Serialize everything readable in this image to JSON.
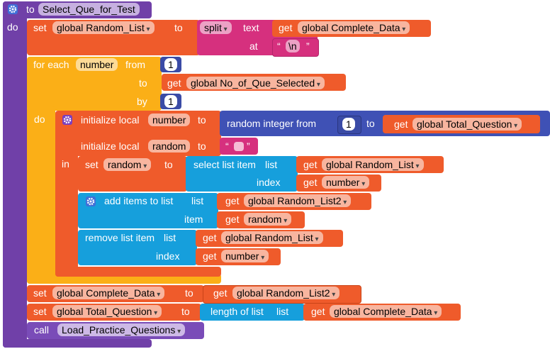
{
  "procedure": {
    "to": "to",
    "name": "Select_Que_for_Test",
    "do": "do"
  },
  "lines": [
    [
      "set",
      "global Random_List",
      "to",
      "split",
      "text",
      "get",
      "global Complete_Data"
    ],
    [
      "at",
      "“",
      "\\n",
      "”"
    ],
    [
      "for each",
      "number",
      "from",
      1
    ],
    [
      "to",
      "get",
      "global No_of_Que_Selected"
    ],
    [
      "by",
      1
    ],
    [
      "do",
      "initialize local",
      "number",
      "to",
      "random integer from",
      1,
      "to",
      "get",
      "global Total_Question"
    ],
    [
      "initialize local",
      "random",
      "to",
      "“",
      "”"
    ],
    [
      "in",
      "set",
      "random",
      "to",
      "select list item",
      "list",
      "get",
      "global Random_List"
    ],
    [
      "index",
      "get",
      "number"
    ],
    [
      "add items to list",
      "list",
      "get",
      "global Random_List2"
    ],
    [
      "item",
      "get",
      "random"
    ],
    [
      "remove list item",
      "list",
      "get",
      "global Random_List"
    ],
    [
      "index",
      "get",
      "number"
    ],
    [
      "set",
      "global Complete_Data",
      "to",
      "get",
      "global Random_List2"
    ],
    [
      "set",
      "global Total_Question",
      "to",
      "length of list",
      "list",
      "get",
      "global Complete_Data"
    ],
    [
      "call",
      "Load_Practice_Questions"
    ]
  ]
}
